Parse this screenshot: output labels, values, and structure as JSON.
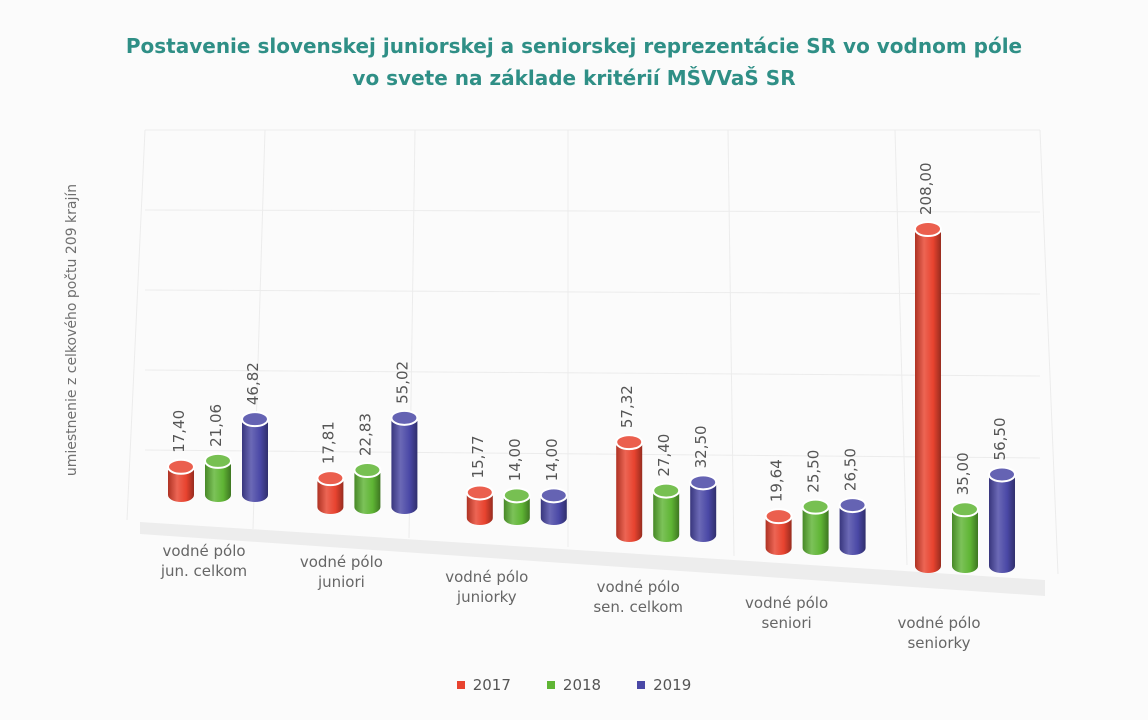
{
  "chart_data": {
    "type": "bar",
    "title_line1": "Postavenie slovenskej juniorskej a seniorskej reprezentácie SR vo vodnom póle",
    "title_line2": "vo svete na základe kritérií MŠVVaŠ SR",
    "xlabel": "",
    "ylabel": "umiestnenie z celkového počtu 209 krajín",
    "ylim": [
      0,
      210
    ],
    "grid": true,
    "legend_position": "bottom",
    "categories": [
      [
        "vodné pólo",
        "jun. celkom"
      ],
      [
        "vodné pólo",
        "juniori"
      ],
      [
        "vodné pólo",
        "juniorky"
      ],
      [
        "vodné pólo",
        "sen. celkom"
      ],
      [
        "vodné pólo",
        "seniori"
      ],
      [
        "vodné pólo",
        "seniorky"
      ]
    ],
    "series": [
      {
        "name": "2017",
        "color": "#e8432f",
        "values": [
          17.4,
          17.81,
          15.77,
          57.32,
          19.64,
          208.0
        ],
        "labels": [
          "17,40",
          "17,81",
          "15,77",
          "57,32",
          "19,64",
          "208,00"
        ]
      },
      {
        "name": "2018",
        "color": "#5fb534",
        "values": [
          21.06,
          22.83,
          14.0,
          27.4,
          25.5,
          35.0
        ],
        "labels": [
          "21,06",
          "22,83",
          "14,00",
          "27,40",
          "25,50",
          "35,00"
        ]
      },
      {
        "name": "2019",
        "color": "#4a48a6",
        "values": [
          46.82,
          55.02,
          14.0,
          32.5,
          26.5,
          56.5
        ],
        "labels": [
          "46,82",
          "55,02",
          "14,00",
          "32,50",
          "26,50",
          "56,50"
        ]
      }
    ]
  }
}
